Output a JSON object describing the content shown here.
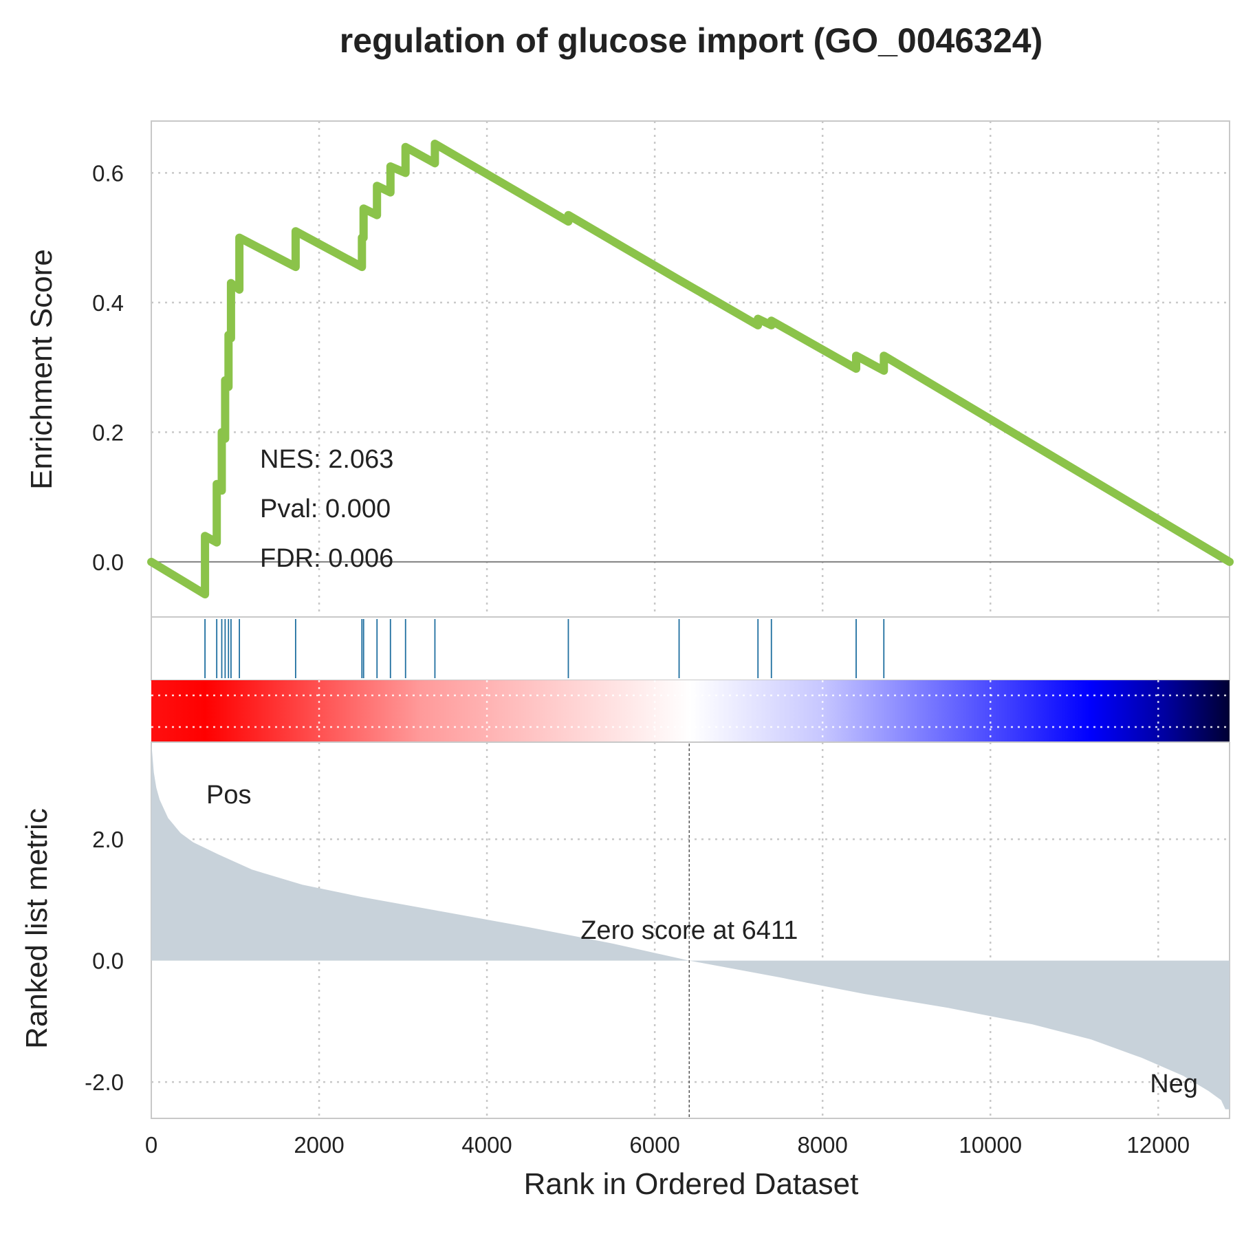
{
  "chart_data": {
    "type": "line",
    "title": "regulation of glucose import (GO_0046324)",
    "xlabel": "Rank in Ordered Dataset",
    "ylabel_top": "Enrichment Score",
    "ylabel_bottom": "Ranked list metric",
    "xlim": [
      0,
      12850
    ],
    "xticks": [
      0,
      2000,
      4000,
      6000,
      8000,
      10000,
      12000
    ],
    "top_ylim": [
      -0.085,
      0.68
    ],
    "top_yticks": [
      "0.0",
      "0.2",
      "0.4",
      "0.6"
    ],
    "top_ytick_values": [
      0.0,
      0.2,
      0.4,
      0.6
    ],
    "bottom_ylim": [
      -2.6,
      3.6
    ],
    "bottom_yticks": [
      "-2.0",
      "0.0",
      "2.0"
    ],
    "bottom_ytick_values": [
      -2.0,
      0.0,
      2.0
    ],
    "grid": true,
    "line_color": "#8bc34a",
    "hit_color": "#1f6fa0",
    "metric_fill_color": "#c8d2da",
    "stats": {
      "nes": "NES: 2.063",
      "pval": "Pval: 0.000",
      "fdr": "FDR: 0.006"
    },
    "zero_score": {
      "rank": 6411,
      "label": "Zero score at 6411"
    },
    "pos_label": "Pos",
    "neg_label": "Neg",
    "pos_color": "#ff0000",
    "neg_color": "#0000ff",
    "hits": [
      640,
      780,
      840,
      880,
      920,
      950,
      1050,
      1720,
      2510,
      2530,
      2690,
      2850,
      3030,
      3380,
      4970,
      6290,
      7230,
      7390,
      8400,
      8730
    ],
    "es_curve": [
      [
        0,
        0.0
      ],
      [
        640,
        -0.05
      ],
      [
        640,
        0.04
      ],
      [
        780,
        0.03
      ],
      [
        780,
        0.12
      ],
      [
        840,
        0.11
      ],
      [
        840,
        0.2
      ],
      [
        880,
        0.19
      ],
      [
        880,
        0.28
      ],
      [
        920,
        0.27
      ],
      [
        920,
        0.35
      ],
      [
        950,
        0.345
      ],
      [
        950,
        0.43
      ],
      [
        1050,
        0.42
      ],
      [
        1050,
        0.5
      ],
      [
        1720,
        0.455
      ],
      [
        1720,
        0.51
      ],
      [
        2510,
        0.455
      ],
      [
        2510,
        0.5
      ],
      [
        2530,
        0.5
      ],
      [
        2530,
        0.545
      ],
      [
        2690,
        0.535
      ],
      [
        2690,
        0.58
      ],
      [
        2850,
        0.57
      ],
      [
        2850,
        0.61
      ],
      [
        3030,
        0.6
      ],
      [
        3030,
        0.64
      ],
      [
        3380,
        0.615
      ],
      [
        3380,
        0.645
      ],
      [
        4970,
        0.525
      ],
      [
        4970,
        0.535
      ],
      [
        6290,
        0.435
      ],
      [
        6290,
        0.435
      ],
      [
        7230,
        0.365
      ],
      [
        7230,
        0.375
      ],
      [
        7390,
        0.365
      ],
      [
        7390,
        0.372
      ],
      [
        8400,
        0.298
      ],
      [
        8400,
        0.318
      ],
      [
        8730,
        0.295
      ],
      [
        8730,
        0.318
      ],
      [
        12850,
        0.0
      ]
    ],
    "metric_curve": [
      [
        0,
        3.6
      ],
      [
        30,
        3.1
      ],
      [
        60,
        2.85
      ],
      [
        100,
        2.65
      ],
      [
        200,
        2.35
      ],
      [
        350,
        2.1
      ],
      [
        500,
        1.95
      ],
      [
        800,
        1.75
      ],
      [
        1200,
        1.5
      ],
      [
        1800,
        1.25
      ],
      [
        2500,
        1.05
      ],
      [
        3500,
        0.8
      ],
      [
        4500,
        0.55
      ],
      [
        5500,
        0.28
      ],
      [
        6411,
        0.0
      ],
      [
        7500,
        -0.28
      ],
      [
        8500,
        -0.55
      ],
      [
        9500,
        -0.78
      ],
      [
        10500,
        -1.05
      ],
      [
        11200,
        -1.3
      ],
      [
        11800,
        -1.6
      ],
      [
        12300,
        -1.9
      ],
      [
        12600,
        -2.15
      ],
      [
        12750,
        -2.3
      ],
      [
        12800,
        -2.45
      ],
      [
        12850,
        -2.45
      ]
    ]
  }
}
